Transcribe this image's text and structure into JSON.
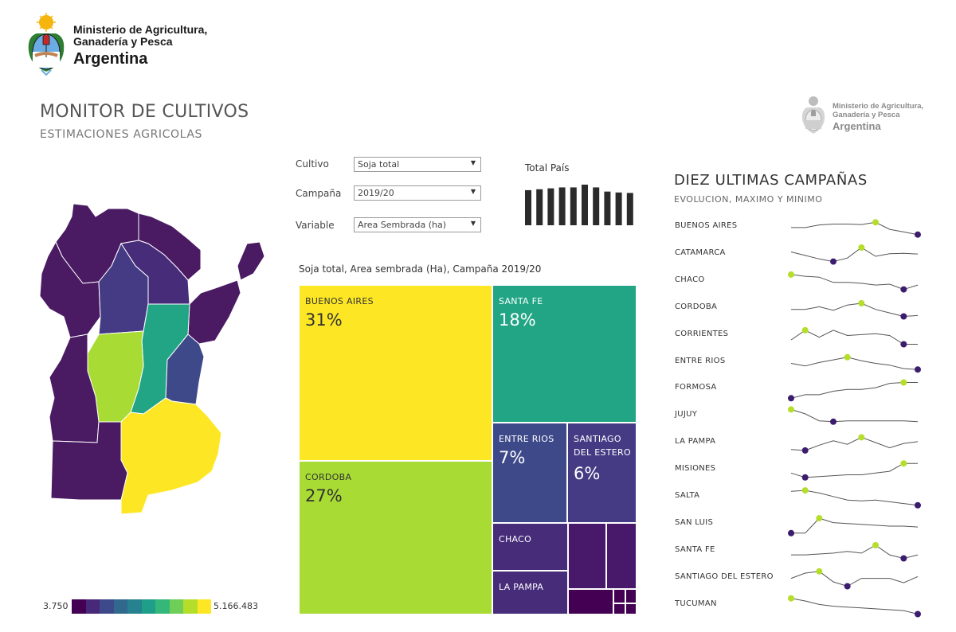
{
  "header": {
    "ministry_line1": "Ministerio de Agricultura,",
    "ministry_line2": "Ganadería y Pesca",
    "country": "Argentina"
  },
  "page": {
    "title": "MONITOR DE CULTIVOS",
    "subtitle": "ESTIMACIONES AGRICOLAS"
  },
  "filters": {
    "cultivo_label": "Cultivo",
    "cultivo_value": "Soja total",
    "campana_label": "Campaña",
    "campana_value": "2019/20",
    "variable_label": "Variable",
    "variable_value": "Area Sembrada (ha)"
  },
  "total_pais": {
    "label": "Total País",
    "relative_values": [
      0.76,
      0.78,
      0.8,
      0.82,
      0.82,
      0.88,
      0.82,
      0.73,
      0.71,
      0.7
    ]
  },
  "legend": {
    "min": "3.750",
    "max": "5.166.483",
    "colors": [
      "#440154",
      "#482878",
      "#3e4989",
      "#31688e",
      "#26828e",
      "#1f9e89",
      "#35b779",
      "#6ece58",
      "#b5de2b",
      "#fde725"
    ]
  },
  "treemap": {
    "title": "Soja total, Area sembrada (Ha), Campaña 2019/20"
  },
  "sparklines": {
    "title": "DIEZ ULTIMAS CAMPAÑAS",
    "subtitle": "EVOLUCION, MAXIMO Y MINIMO",
    "max_color": "#b5de2b",
    "min_color": "#3b1c6e"
  },
  "chart_data": [
    {
      "type": "treemap",
      "title": "Soja total, Area sembrada (Ha), Campaña 2019/20",
      "items": [
        {
          "name": "BUENOS AIRES",
          "label": "31%",
          "share": 0.31,
          "color": "#fde725"
        },
        {
          "name": "CORDOBA",
          "label": "27%",
          "share": 0.27,
          "color": "#a8db34"
        },
        {
          "name": "SANTA FE",
          "label": "18%",
          "share": 0.18,
          "color": "#21a585"
        },
        {
          "name": "ENTRE RIOS",
          "label": "7%",
          "share": 0.07,
          "color": "#3e4989"
        },
        {
          "name": "SANTIAGO DEL ESTERO",
          "label": "6%",
          "share": 0.06,
          "color": "#443b84"
        },
        {
          "name": "CHACO",
          "label": "",
          "share": null,
          "color": "#472c7a"
        },
        {
          "name": "LA PAMPA",
          "label": "",
          "share": null,
          "color": "#472c7a"
        }
      ]
    },
    {
      "type": "line",
      "title": "DIEZ ULTIMAS CAMPAÑAS",
      "subtitle": "EVOLUCION, MAXIMO Y MINIMO",
      "series": [
        {
          "name": "BUENOS AIRES",
          "values": [
            0.55,
            0.55,
            0.7,
            0.75,
            0.75,
            0.72,
            0.85,
            0.45,
            0.3,
            0.15
          ]
        },
        {
          "name": "CATAMARCA",
          "values": [
            0.7,
            0.5,
            0.3,
            0.15,
            0.35,
            0.95,
            0.45,
            0.6,
            0.62,
            0.58
          ]
        },
        {
          "name": "CHACO",
          "values": [
            0.95,
            0.85,
            0.8,
            0.5,
            0.5,
            0.45,
            0.35,
            0.4,
            0.1,
            0.35
          ]
        },
        {
          "name": "CORDOBA",
          "values": [
            0.5,
            0.5,
            0.65,
            0.45,
            0.75,
            0.85,
            0.5,
            0.3,
            0.1,
            0.15
          ]
        },
        {
          "name": "CORRIENTES",
          "values": [
            0.3,
            0.85,
            0.45,
            0.85,
            0.55,
            0.6,
            0.65,
            0.55,
            0.05,
            0.05
          ]
        },
        {
          "name": "ENTRE RIOS",
          "values": [
            0.5,
            0.35,
            0.55,
            0.7,
            0.85,
            0.65,
            0.5,
            0.4,
            0.2,
            0.15
          ]
        },
        {
          "name": "FORMOSA",
          "values": [
            0.05,
            0.25,
            0.25,
            0.45,
            0.55,
            0.55,
            0.65,
            0.9,
            0.95,
            0.95
          ]
        },
        {
          "name": "JUJUY",
          "values": [
            0.95,
            0.7,
            0.3,
            0.25,
            0.3,
            0.3,
            0.3,
            0.3,
            0.3,
            0.25
          ]
        },
        {
          "name": "LA PAMPA",
          "values": [
            0.2,
            0.15,
            0.45,
            0.7,
            0.5,
            0.9,
            0.6,
            0.3,
            0.55,
            0.65
          ]
        },
        {
          "name": "MISIONES",
          "values": [
            0.4,
            0.15,
            0.2,
            0.25,
            0.3,
            0.3,
            0.4,
            0.5,
            0.95,
            0.95
          ]
        },
        {
          "name": "SALTA",
          "values": [
            0.9,
            0.95,
            0.8,
            0.6,
            0.4,
            0.35,
            0.4,
            0.3,
            0.2,
            0.1
          ]
        },
        {
          "name": "SAN LUIS",
          "values": [
            0.05,
            0.05,
            0.9,
            0.65,
            0.6,
            0.55,
            0.5,
            0.45,
            0.45,
            0.4
          ]
        },
        {
          "name": "SANTA FE",
          "values": [
            0.35,
            0.35,
            0.4,
            0.45,
            0.55,
            0.45,
            0.9,
            0.35,
            0.15,
            0.35
          ]
        },
        {
          "name": "SANTIAGO DEL ESTERO",
          "values": [
            0.55,
            0.85,
            0.95,
            0.35,
            0.1,
            0.55,
            0.55,
            0.55,
            0.3,
            0.65
          ]
        },
        {
          "name": "TUCUMAN",
          "values": [
            0.95,
            0.8,
            0.6,
            0.5,
            0.45,
            0.4,
            0.35,
            0.3,
            0.25,
            0.05
          ]
        }
      ]
    },
    {
      "type": "bar",
      "title": "Total País",
      "values": [
        0.76,
        0.78,
        0.8,
        0.82,
        0.82,
        0.88,
        0.82,
        0.73,
        0.71,
        0.7
      ]
    }
  ]
}
